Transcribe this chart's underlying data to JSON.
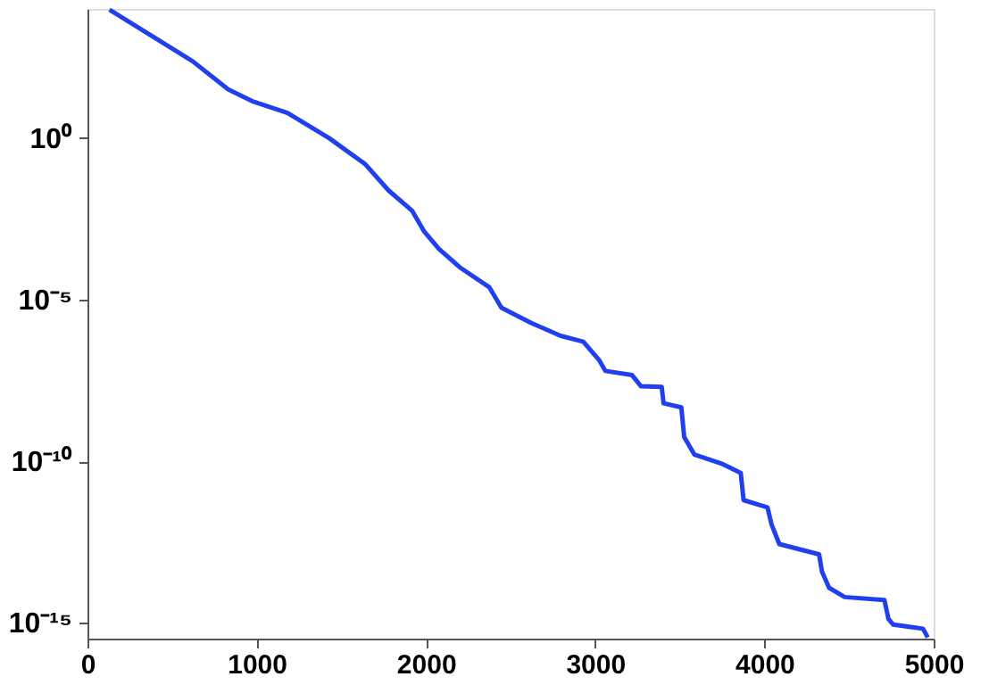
{
  "chart_data": {
    "type": "line",
    "log": true,
    "grid": false,
    "marker": "none",
    "line_style": "solid",
    "x": [
      130,
      621,
      832,
      972,
      1182,
      1428,
      1639,
      1779,
      1919,
      1989,
      2077,
      2200,
      2375,
      2446,
      2621,
      2796,
      2930,
      3025,
      3060,
      3218,
      3270,
      3393,
      3404,
      3509,
      3526,
      3586,
      3744,
      3860,
      3877,
      4018,
      4042,
      4088,
      4323,
      4340,
      4382,
      4474,
      4709,
      4733,
      4761,
      4937,
      4965
    ],
    "series": [
      {
        "color": "#2040f0",
        "values": [
          9500.0,
          240.0,
          32.0,
          14.0,
          6.0,
          1.0,
          0.16,
          0.024,
          0.0056,
          0.0013,
          0.00037,
          0.0001,
          2.4e-05,
          5.6e-06,
          1.9e-06,
          7.6e-07,
          5e-07,
          1.3e-07,
          6.2e-08,
          4.6e-08,
          2.1e-08,
          2e-08,
          6.2e-09,
          4.6e-09,
          5.6e-10,
          1.6e-10,
          8.5e-11,
          4.3e-11,
          6.2e-12,
          3.7e-12,
          1.1e-12,
          2.7e-13,
          1.3e-13,
          3.8e-14,
          1.2e-14,
          6.2e-15,
          5e-15,
          1.3e-15,
          8.7e-16,
          6.5e-16,
          3.5e-16
        ]
      }
    ],
    "xlim": [
      0,
      5000
    ],
    "xticks": [
      0,
      1000,
      2000,
      3000,
      4000,
      5000
    ],
    "ylim": [
      3.2e-16,
      10000.0
    ],
    "yticks": [
      {
        "value": 1,
        "label": "10⁰"
      },
      {
        "value": 1e-05,
        "label": "10⁻⁵"
      },
      {
        "value": 1e-10,
        "label": "10⁻¹⁰"
      },
      {
        "value": 1e-15,
        "label": "10⁻¹⁵"
      }
    ]
  }
}
